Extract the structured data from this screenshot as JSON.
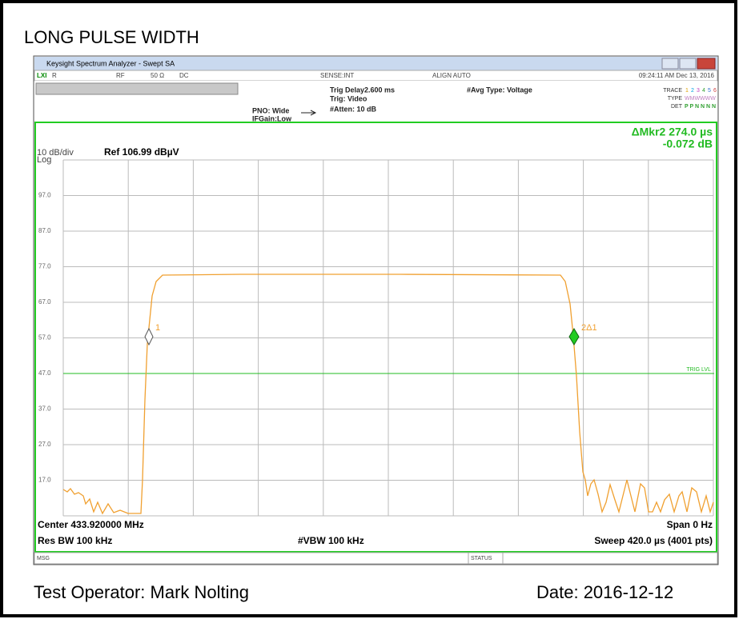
{
  "page_title": "LONG PULSE WIDTH",
  "window": {
    "title": "Keysight Spectrum Analyzer - Swept SA"
  },
  "status_row": {
    "lxi": "LXI",
    "r": "R",
    "rf": "RF",
    "impedance": "50 Ω",
    "coupling": "DC",
    "sense": "SENSE:INT",
    "align": "ALIGN AUTO",
    "datetime": "09:24:11 AM Dec 13, 2016"
  },
  "settings": {
    "pno": "PNO: Wide",
    "ifgain": "IFGain:Low",
    "trig_delay": "Trig Delay2.600 ms",
    "trig": "Trig: Video",
    "atten": "#Atten: 10 dB",
    "avg_type": "#Avg Type: Voltage",
    "trace_label": "TRACE",
    "trace_nums": [
      "1",
      "2",
      "3",
      "4",
      "5",
      "6"
    ],
    "type_label": "TYPE",
    "type_value": "WMWWWW",
    "det_label": "DET",
    "det_value": "P P N N N N"
  },
  "display": {
    "marker_readout": "ΔMkr2 274.0 µs",
    "marker_value": "-0.072 dB",
    "scale": "10 dB/div",
    "log": "Log",
    "ref": "Ref 106.99 dBµV",
    "y_labels": [
      "97.0",
      "87.0",
      "77.0",
      "67.0",
      "57.0",
      "47.0",
      "37.0",
      "27.0",
      "17.0"
    ],
    "trig_lvl": "TRIG LVL",
    "marker1": "1",
    "marker2": "2Δ1"
  },
  "footer_info": {
    "center": "Center 433.920000 MHz",
    "span": "Span 0 Hz",
    "res_bw": "Res BW 100 kHz",
    "vbw": "#VBW 100 kHz",
    "sweep": "Sweep  420.0 µs (4001 pts)"
  },
  "statusbar": {
    "msg": "MSG",
    "status": "STATUS"
  },
  "footer": {
    "operator": "Test Operator:  Mark Nolting",
    "date": "Date:  2016-12-12"
  }
}
